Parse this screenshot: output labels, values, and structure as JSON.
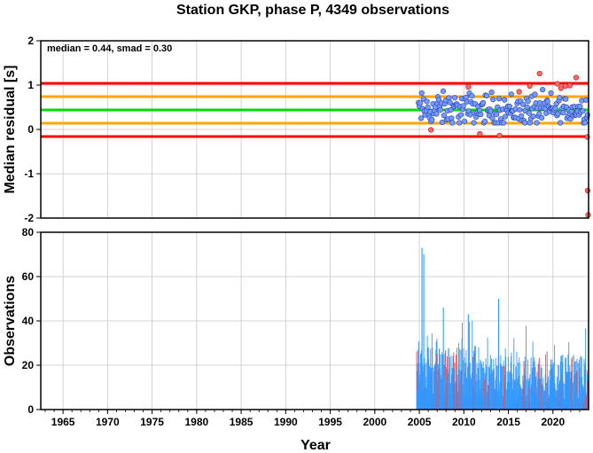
{
  "chart_data": [
    {
      "type": "scatter",
      "title": "Station GKP, phase P, 4349 observations",
      "annotation": "median = 0.44, smad = 0.30",
      "xlabel": "",
      "ylabel": "Median residual [s]",
      "xlim": [
        1962.5,
        2024
      ],
      "ylim": [
        -2,
        2
      ],
      "yticks": [
        "2",
        "1",
        "0",
        "-1",
        "-2"
      ],
      "grid": true,
      "reference_lines": [
        {
          "y": 1.04,
          "color": "#ff0000"
        },
        {
          "y": 0.74,
          "color": "#ffa500"
        },
        {
          "y": 0.44,
          "color": "#00dd00"
        },
        {
          "y": 0.14,
          "color": "#ffa500"
        },
        {
          "y": -0.16,
          "color": "#ff0000"
        }
      ],
      "point_colors": {
        "inside": "#7799ff",
        "outside": "#ff6666"
      },
      "series_x_range": [
        2004.9,
        2023.9
      ],
      "outliers": [
        [
          2006.3,
          -0.01
        ],
        [
          2010.5,
          0.96
        ],
        [
          2011.8,
          -0.1
        ],
        [
          2014.0,
          -0.14
        ],
        [
          2016.2,
          0.85
        ],
        [
          2017.4,
          0.98
        ],
        [
          2018.5,
          1.26
        ],
        [
          2020.5,
          1.03
        ],
        [
          2020.9,
          0.93
        ],
        [
          2021.4,
          0.98
        ],
        [
          2021.9,
          0.99
        ],
        [
          2022.6,
          1.17
        ],
        [
          2023.85,
          -0.17
        ],
        [
          2023.9,
          -1.38
        ],
        [
          2023.95,
          -1.93
        ]
      ]
    },
    {
      "type": "bar",
      "xlabel": "Year",
      "ylabel": "Observations",
      "xlim": [
        1962.5,
        2024
      ],
      "ylim": [
        0,
        80
      ],
      "yticks": [
        "80",
        "60",
        "40",
        "20",
        "0"
      ],
      "xticks": [
        "1965",
        "1970",
        "1975",
        "1980",
        "1985",
        "1990",
        "1995",
        "2000",
        "2005",
        "2010",
        "2015",
        "2020"
      ],
      "grid": true,
      "bar_colors": {
        "normal": "#3399ff",
        "flagged": "#ee4444"
      },
      "data_x_range": [
        2004.7,
        2023.9
      ],
      "peaks": [
        [
          2005.3,
          73
        ],
        [
          2005.5,
          70
        ],
        [
          2007.7,
          46
        ],
        [
          2010.5,
          43
        ],
        [
          2013.9,
          50
        ]
      ]
    }
  ]
}
